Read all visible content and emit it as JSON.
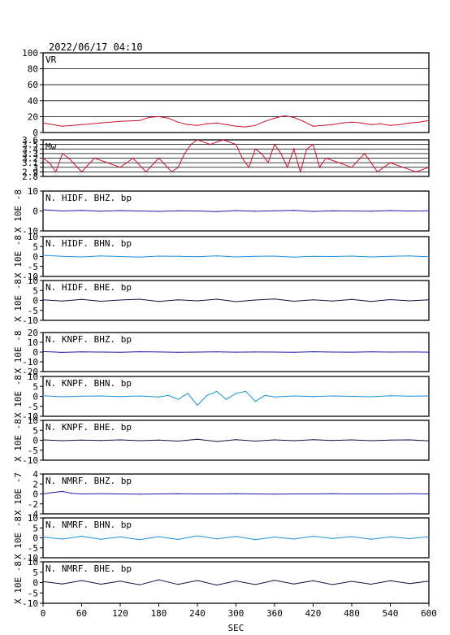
{
  "header": {
    "timestamp": "2022/06/17 04:10"
  },
  "chart_data": {
    "type": "line",
    "xlabel": "SEC",
    "xlim": [
      0,
      600
    ],
    "xticks": [
      0,
      60,
      120,
      180,
      240,
      300,
      360,
      420,
      480,
      540,
      600
    ],
    "panels": [
      {
        "title": "VR",
        "ylabel": "",
        "ylim": [
          0,
          100
        ],
        "yticks": [
          100,
          80,
          60,
          40,
          20,
          0
        ],
        "grid": true,
        "color": "#c8102e",
        "series": [
          {
            "x": [
              0,
              30,
              60,
              90,
              120,
              150,
              165,
              180,
              195,
              210,
              225,
              240,
              255,
              270,
              285,
              300,
              315,
              330,
              345,
              360,
              375,
              390,
              405,
              420,
              435,
              450,
              465,
              480,
              495,
              510,
              525,
              540,
              555,
              570,
              585,
              600
            ],
            "y": [
              12,
              8,
              10,
              12,
              14,
              15,
              19,
              20,
              18,
              13,
              10,
              9,
              11,
              12,
              10,
              8,
              7,
              9,
              14,
              18,
              21,
              19,
              14,
              8,
              9,
              10,
              12,
              13,
              12,
              10,
              11,
              9,
              10,
              12,
              13,
              15
            ]
          }
        ]
      },
      {
        "title": "Mw",
        "ylabel": "",
        "ylim": [
          2.8,
          3.6
        ],
        "yticks": [
          3.6,
          3.5,
          3.4,
          3.3,
          3.2,
          3.1,
          3.0,
          2.9,
          2.8
        ],
        "grid": true,
        "color": "#c8102e",
        "series": [
          {
            "x": [
              0,
              10,
              20,
              30,
              40,
              60,
              80,
              100,
              120,
              140,
              160,
              180,
              200,
              210,
              220,
              230,
              240,
              260,
              280,
              300,
              310,
              320,
              330,
              340,
              350,
              360,
              370,
              380,
              390,
              400,
              410,
              420,
              430,
              440,
              460,
              480,
              500,
              520,
              540,
              560,
              580,
              600
            ],
            "y": [
              3.2,
              3.1,
              2.9,
              3.3,
              3.2,
              2.9,
              3.2,
              3.1,
              3.0,
              3.2,
              2.9,
              3.2,
              2.9,
              3.0,
              3.3,
              3.5,
              3.6,
              3.5,
              3.6,
              3.5,
              3.2,
              3.0,
              3.4,
              3.3,
              3.1,
              3.5,
              3.3,
              3.0,
              3.4,
              2.9,
              3.4,
              3.5,
              3.0,
              3.2,
              3.1,
              3.0,
              3.3,
              2.9,
              3.1,
              3.0,
              2.9,
              3.0
            ]
          }
        ]
      },
      {
        "title": "N. HIDF. BHZ. bp",
        "ylabel": "X 10E -8",
        "ylim": [
          -10,
          10
        ],
        "yticks": [
          10,
          0,
          -10
        ],
        "grid": false,
        "color": "#1a1aa8",
        "series": [
          {
            "x": [
              0,
              30,
              60,
              90,
              120,
              150,
              180,
              210,
              240,
              270,
              300,
              330,
              360,
              390,
              420,
              450,
              480,
              510,
              540,
              570,
              600
            ],
            "y": [
              0.6,
              0.0,
              0.3,
              -0.1,
              0.2,
              0.0,
              -0.2,
              0.1,
              0.0,
              -0.3,
              0.2,
              -0.1,
              0.1,
              0.3,
              -0.2,
              0.1,
              0.0,
              -0.1,
              0.2,
              0.0,
              0.1
            ]
          }
        ]
      },
      {
        "title": "N. HIDF. BHN. bp",
        "ylabel": "X 10E -8",
        "ylim": [
          -10,
          10
        ],
        "yticks": [
          10,
          5,
          0,
          -5,
          -10
        ],
        "grid": false,
        "color": "#1e8fd6",
        "series": [
          {
            "x": [
              0,
              30,
              60,
              90,
              120,
              150,
              180,
              210,
              240,
              270,
              300,
              330,
              360,
              390,
              420,
              450,
              480,
              510,
              540,
              570,
              600
            ],
            "y": [
              0.6,
              0.1,
              -0.2,
              0.3,
              0.0,
              -0.3,
              0.2,
              0.1,
              -0.1,
              0.3,
              -0.2,
              0.1,
              0.2,
              -0.3,
              0.1,
              0.0,
              0.2,
              -0.2,
              0.1,
              0.3,
              -0.1
            ]
          }
        ]
      },
      {
        "title": "N. HIDF. BHE. bp",
        "ylabel": "X 10E -8",
        "ylim": [
          -10,
          10
        ],
        "yticks": [
          10,
          5,
          0,
          -5,
          -10
        ],
        "grid": false,
        "color": "#101048",
        "series": [
          {
            "x": [
              0,
              30,
              60,
              90,
              120,
              150,
              180,
              210,
              240,
              270,
              300,
              330,
              360,
              390,
              420,
              450,
              480,
              510,
              540,
              570,
              600
            ],
            "y": [
              0.3,
              -0.3,
              0.5,
              -0.4,
              0.2,
              0.6,
              -0.5,
              0.3,
              -0.2,
              0.6,
              -0.6,
              0.2,
              0.7,
              -0.4,
              0.3,
              -0.3,
              0.5,
              -0.5,
              0.4,
              -0.2,
              0.3
            ]
          }
        ]
      },
      {
        "title": "N. KNPF. BHZ. bp",
        "ylabel": "X 10E -8",
        "ylim": [
          -20,
          20
        ],
        "yticks": [
          20,
          10,
          0,
          -10,
          -20
        ],
        "grid": false,
        "color": "#1a1aa8",
        "series": [
          {
            "x": [
              0,
              30,
              60,
              90,
              120,
              150,
              180,
              210,
              240,
              270,
              300,
              330,
              360,
              390,
              420,
              450,
              480,
              510,
              540,
              570,
              600
            ],
            "y": [
              0.5,
              -0.3,
              0.2,
              0.0,
              -0.2,
              0.3,
              0.1,
              -0.2,
              0.0,
              0.2,
              -0.1,
              0.1,
              0.0,
              -0.2,
              0.3,
              0.0,
              -0.1,
              0.2,
              0.0,
              0.1,
              -0.1
            ]
          }
        ]
      },
      {
        "title": "N. KNPF. BHN. bp",
        "ylabel": "X 10E -8",
        "ylim": [
          -10,
          10
        ],
        "yticks": [
          10,
          5,
          0,
          -5,
          -10
        ],
        "grid": false,
        "color": "#1e8fd6",
        "series": [
          {
            "x": [
              0,
              30,
              60,
              90,
              120,
              150,
              180,
              195,
              210,
              225,
              240,
              255,
              270,
              285,
              300,
              315,
              330,
              345,
              360,
              390,
              420,
              450,
              480,
              510,
              540,
              570,
              600
            ],
            "y": [
              0.3,
              -0.2,
              0.1,
              0.2,
              -0.1,
              0.2,
              -0.3,
              0.5,
              -1.5,
              1.5,
              -4.5,
              0.5,
              2.5,
              -1.5,
              1.5,
              2.5,
              -2.5,
              0.5,
              -0.3,
              0.2,
              -0.1,
              0.2,
              0.0,
              -0.2,
              0.3,
              0.1,
              0.2
            ]
          }
        ]
      },
      {
        "title": "N. KNPF. BHE. bp",
        "ylabel": "X 10E -8",
        "ylim": [
          -10,
          10
        ],
        "yticks": [
          10,
          5,
          0,
          -5,
          -10
        ],
        "grid": false,
        "color": "#101048",
        "series": [
          {
            "x": [
              0,
              30,
              60,
              90,
              120,
              150,
              180,
              210,
              240,
              270,
              300,
              330,
              360,
              390,
              420,
              450,
              480,
              510,
              540,
              570,
              600
            ],
            "y": [
              0.2,
              -0.2,
              0.1,
              -0.1,
              0.2,
              -0.2,
              0.1,
              -0.4,
              0.5,
              -0.6,
              0.3,
              -0.4,
              0.2,
              -0.2,
              0.3,
              -0.1,
              0.2,
              -0.2,
              0.1,
              0.2,
              -0.3
            ]
          }
        ]
      },
      {
        "title": "N. NMRF. BHZ. bp",
        "ylabel": "X 10E -7",
        "ylim": [
          -4,
          4
        ],
        "yticks": [
          4,
          2,
          0,
          -2,
          -4
        ],
        "grid": false,
        "color": "#1a1aa8",
        "series": [
          {
            "x": [
              0,
              15,
              30,
              45,
              60,
              90,
              120,
              150,
              180,
              210,
              240,
              270,
              300,
              330,
              360,
              390,
              420,
              450,
              480,
              510,
              540,
              570,
              600
            ],
            "y": [
              0.0,
              0.3,
              0.5,
              0.1,
              0.0,
              0.05,
              0.0,
              -0.05,
              0.0,
              0.05,
              0.0,
              0.0,
              0.05,
              0.0,
              -0.05,
              0.0,
              0.0,
              0.05,
              0.0,
              0.0,
              0.0,
              0.05,
              0.0
            ]
          }
        ]
      },
      {
        "title": "N. NMRF. BHN. bp",
        "ylabel": "X 10E -8",
        "ylim": [
          -10,
          10
        ],
        "yticks": [
          10,
          5,
          0,
          -5,
          -10
        ],
        "grid": false,
        "color": "#1e8fd6",
        "series": [
          {
            "x": [
              0,
              30,
              60,
              90,
              120,
              150,
              180,
              210,
              240,
              270,
              300,
              330,
              360,
              390,
              420,
              450,
              480,
              510,
              540,
              570,
              600
            ],
            "y": [
              0.4,
              -0.6,
              0.8,
              -0.7,
              0.5,
              -0.9,
              0.6,
              -0.8,
              1.0,
              -0.5,
              0.7,
              -0.9,
              0.4,
              -0.6,
              0.8,
              -0.3,
              0.6,
              -0.7,
              0.5,
              -0.4,
              0.6
            ]
          }
        ]
      },
      {
        "title": "N. NMRF. BHE. bp",
        "ylabel": "X 10E -8",
        "ylim": [
          -10,
          10
        ],
        "yticks": [
          10,
          5,
          0,
          -5,
          -10
        ],
        "grid": false,
        "color": "#101048",
        "series": [
          {
            "x": [
              0,
              30,
              60,
              90,
              120,
              150,
              180,
              210,
              240,
              270,
              300,
              330,
              360,
              390,
              420,
              450,
              480,
              510,
              540,
              570,
              600
            ],
            "y": [
              0.5,
              -0.7,
              1.0,
              -0.8,
              0.7,
              -1.1,
              1.3,
              -0.9,
              1.0,
              -1.2,
              0.8,
              -1.0,
              1.1,
              -0.7,
              0.9,
              -1.0,
              0.6,
              -0.8,
              0.9,
              -0.5,
              0.7
            ]
          }
        ]
      }
    ]
  }
}
